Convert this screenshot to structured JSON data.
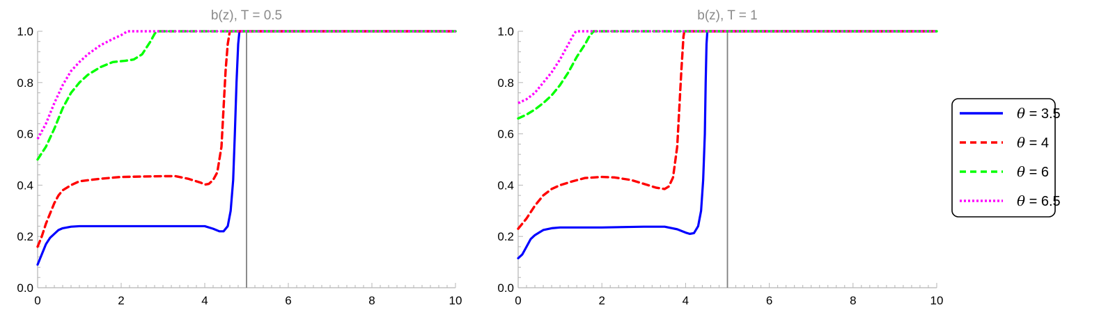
{
  "chart_data": [
    {
      "type": "line",
      "title": "b(z), T = 0.5",
      "xlim": [
        0,
        10
      ],
      "ylim": [
        0,
        1
      ],
      "xticks": [
        0,
        2,
        4,
        6,
        8,
        10
      ],
      "yticks": [
        "0.0",
        "0.2",
        "0.4",
        "0.6",
        "0.8",
        "1.0"
      ],
      "vertical_line_x": 5,
      "series": [
        {
          "name": "θ = 3.5",
          "color": "#0000ff",
          "style": "solid",
          "points": [
            [
              0,
              0.09
            ],
            [
              0.1,
              0.13
            ],
            [
              0.2,
              0.17
            ],
            [
              0.3,
              0.195
            ],
            [
              0.4,
              0.21
            ],
            [
              0.5,
              0.225
            ],
            [
              0.6,
              0.232
            ],
            [
              0.8,
              0.238
            ],
            [
              1.0,
              0.24
            ],
            [
              2.0,
              0.24
            ],
            [
              3.0,
              0.24
            ],
            [
              4.0,
              0.24
            ],
            [
              4.2,
              0.23
            ],
            [
              4.35,
              0.22
            ],
            [
              4.45,
              0.22
            ],
            [
              4.55,
              0.24
            ],
            [
              4.62,
              0.3
            ],
            [
              4.68,
              0.42
            ],
            [
              4.72,
              0.6
            ],
            [
              4.76,
              0.8
            ],
            [
              4.8,
              0.95
            ],
            [
              4.83,
              1.0
            ],
            [
              10,
              1.0
            ]
          ]
        },
        {
          "name": "θ = 4",
          "color": "#ff0000",
          "style": "dashed",
          "points": [
            [
              0,
              0.16
            ],
            [
              0.1,
              0.2
            ],
            [
              0.2,
              0.25
            ],
            [
              0.3,
              0.29
            ],
            [
              0.4,
              0.33
            ],
            [
              0.5,
              0.36
            ],
            [
              0.6,
              0.38
            ],
            [
              0.8,
              0.4
            ],
            [
              1.0,
              0.415
            ],
            [
              1.5,
              0.425
            ],
            [
              2.0,
              0.432
            ],
            [
              3.0,
              0.435
            ],
            [
              3.3,
              0.435
            ],
            [
              3.6,
              0.425
            ],
            [
              3.9,
              0.41
            ],
            [
              4.0,
              0.402
            ],
            [
              4.1,
              0.405
            ],
            [
              4.2,
              0.42
            ],
            [
              4.3,
              0.45
            ],
            [
              4.4,
              0.55
            ],
            [
              4.45,
              0.7
            ],
            [
              4.5,
              0.85
            ],
            [
              4.55,
              0.95
            ],
            [
              4.6,
              1.0
            ],
            [
              10,
              1.0
            ]
          ]
        },
        {
          "name": "θ = 6",
          "color": "#00ff00",
          "style": "dashed",
          "points": [
            [
              0,
              0.5
            ],
            [
              0.2,
              0.55
            ],
            [
              0.4,
              0.62
            ],
            [
              0.6,
              0.7
            ],
            [
              0.8,
              0.76
            ],
            [
              1.0,
              0.8
            ],
            [
              1.2,
              0.83
            ],
            [
              1.5,
              0.86
            ],
            [
              1.8,
              0.88
            ],
            [
              2.1,
              0.885
            ],
            [
              2.3,
              0.89
            ],
            [
              2.5,
              0.91
            ],
            [
              2.6,
              0.935
            ],
            [
              2.7,
              0.96
            ],
            [
              2.8,
              0.99
            ],
            [
              2.85,
              1.0
            ],
            [
              10,
              1.0
            ]
          ]
        },
        {
          "name": "θ = 6.5",
          "color": "#ff00ff",
          "style": "dotted",
          "points": [
            [
              0,
              0.58
            ],
            [
              0.2,
              0.64
            ],
            [
              0.4,
              0.72
            ],
            [
              0.6,
              0.79
            ],
            [
              0.8,
              0.845
            ],
            [
              1.0,
              0.88
            ],
            [
              1.2,
              0.91
            ],
            [
              1.5,
              0.945
            ],
            [
              1.8,
              0.97
            ],
            [
              2.0,
              0.985
            ],
            [
              2.15,
              1.0
            ],
            [
              10,
              1.0
            ]
          ]
        }
      ]
    },
    {
      "type": "line",
      "title": "b(z), T = 1",
      "xlim": [
        0,
        10
      ],
      "ylim": [
        0,
        1
      ],
      "xticks": [
        0,
        2,
        4,
        6,
        8,
        10
      ],
      "yticks": [
        "0.0",
        "0.2",
        "0.4",
        "0.6",
        "0.8",
        "1.0"
      ],
      "vertical_line_x": 5,
      "series": [
        {
          "name": "θ = 3.5",
          "color": "#0000ff",
          "style": "solid",
          "points": [
            [
              0,
              0.115
            ],
            [
              0.1,
              0.13
            ],
            [
              0.2,
              0.16
            ],
            [
              0.3,
              0.19
            ],
            [
              0.4,
              0.205
            ],
            [
              0.5,
              0.215
            ],
            [
              0.6,
              0.225
            ],
            [
              0.8,
              0.232
            ],
            [
              1.0,
              0.235
            ],
            [
              2.0,
              0.235
            ],
            [
              3.0,
              0.238
            ],
            [
              3.5,
              0.238
            ],
            [
              3.8,
              0.228
            ],
            [
              4.0,
              0.215
            ],
            [
              4.1,
              0.21
            ],
            [
              4.2,
              0.213
            ],
            [
              4.3,
              0.24
            ],
            [
              4.37,
              0.3
            ],
            [
              4.42,
              0.42
            ],
            [
              4.46,
              0.6
            ],
            [
              4.48,
              0.8
            ],
            [
              4.5,
              0.95
            ],
            [
              4.52,
              1.0
            ],
            [
              10,
              1.0
            ]
          ]
        },
        {
          "name": "θ = 4",
          "color": "#ff0000",
          "style": "dashed",
          "points": [
            [
              0,
              0.23
            ],
            [
              0.2,
              0.27
            ],
            [
              0.4,
              0.32
            ],
            [
              0.6,
              0.36
            ],
            [
              0.8,
              0.385
            ],
            [
              1.0,
              0.4
            ],
            [
              1.3,
              0.415
            ],
            [
              1.6,
              0.428
            ],
            [
              2.0,
              0.432
            ],
            [
              2.3,
              0.43
            ],
            [
              2.7,
              0.42
            ],
            [
              3.0,
              0.405
            ],
            [
              3.3,
              0.39
            ],
            [
              3.5,
              0.385
            ],
            [
              3.6,
              0.395
            ],
            [
              3.7,
              0.43
            ],
            [
              3.8,
              0.55
            ],
            [
              3.85,
              0.7
            ],
            [
              3.9,
              0.85
            ],
            [
              3.95,
              0.98
            ],
            [
              3.97,
              1.0
            ],
            [
              10,
              1.0
            ]
          ]
        },
        {
          "name": "θ = 6",
          "color": "#00ff00",
          "style": "dashed",
          "points": [
            [
              0,
              0.66
            ],
            [
              0.2,
              0.675
            ],
            [
              0.4,
              0.695
            ],
            [
              0.6,
              0.72
            ],
            [
              0.8,
              0.75
            ],
            [
              1.0,
              0.79
            ],
            [
              1.2,
              0.84
            ],
            [
              1.4,
              0.9
            ],
            [
              1.6,
              0.95
            ],
            [
              1.7,
              0.98
            ],
            [
              1.8,
              1.0
            ],
            [
              10,
              1.0
            ]
          ]
        },
        {
          "name": "θ = 6.5",
          "color": "#ff00ff",
          "style": "dotted",
          "points": [
            [
              0,
              0.72
            ],
            [
              0.2,
              0.735
            ],
            [
              0.4,
              0.76
            ],
            [
              0.6,
              0.8
            ],
            [
              0.8,
              0.84
            ],
            [
              1.0,
              0.89
            ],
            [
              1.2,
              0.95
            ],
            [
              1.3,
              0.98
            ],
            [
              1.38,
              1.0
            ],
            [
              10,
              1.0
            ]
          ]
        }
      ]
    }
  ],
  "legend": {
    "entries": [
      {
        "symbol": "θ",
        "label": " = 3.5",
        "color": "#0000ff",
        "style": "solid"
      },
      {
        "symbol": "θ",
        "label": " = 4",
        "color": "#ff0000",
        "style": "dashed"
      },
      {
        "symbol": "θ",
        "label": " = 6",
        "color": "#00ff00",
        "style": "dashed"
      },
      {
        "symbol": "θ",
        "label": " = 6.5",
        "color": "#ff00ff",
        "style": "dotted"
      }
    ]
  }
}
